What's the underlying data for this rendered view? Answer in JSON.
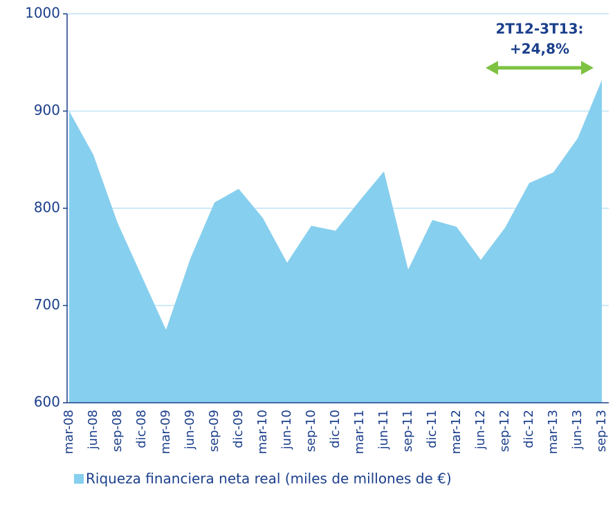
{
  "chart_data": {
    "type": "area",
    "categories": [
      "mar-08",
      "jun-08",
      "sep-08",
      "dic-08",
      "mar-09",
      "jun-09",
      "sep-09",
      "dic-09",
      "mar-10",
      "jun-10",
      "sep-10",
      "dic-10",
      "mar-11",
      "jun-11",
      "sep-11",
      "dic-11",
      "mar-12",
      "jun-12",
      "sep-12",
      "dic-12",
      "mar-13",
      "jun-13",
      "sep-13"
    ],
    "series": [
      {
        "name": "Riqueza financiera neta real (miles de millones de €)",
        "color": "#87cfee",
        "values": [
          900,
          855,
          785,
          730,
          675,
          748,
          806,
          820,
          790,
          744,
          782,
          777,
          808,
          838,
          737,
          788,
          781,
          747,
          780,
          826,
          837,
          872,
          932
        ]
      }
    ],
    "ylim": [
      600,
      1000
    ],
    "yticks": [
      600,
      700,
      800,
      900,
      1000
    ],
    "grid": true,
    "annotations": [
      "2T12-3T13:",
      "+24,8%"
    ]
  }
}
